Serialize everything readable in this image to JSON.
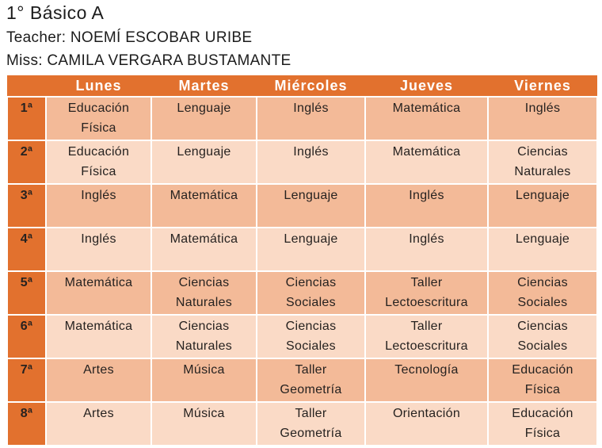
{
  "header": {
    "title": "1° Básico A",
    "teacher_line": "Teacher: NOEMÍ ESCOBAR URIBE",
    "miss_line": "Miss: CAMILA VERGARA BUSTAMANTE"
  },
  "colors": {
    "header_orange": "#E2712E",
    "row_light": "#FADAC6",
    "row_dark": "#F3BA98",
    "day_text": "#FFFFFF",
    "cell_text": "#262220"
  },
  "timetable": {
    "days": [
      "Lunes",
      "Martes",
      "Miércoles",
      "Jueves",
      "Viernes"
    ],
    "periods": [
      "1ª",
      "2ª",
      "3ª",
      "4ª",
      "5ª",
      "6ª",
      "7ª",
      "8ª"
    ],
    "rows": [
      [
        "Educación Física",
        "Lenguaje",
        "Inglés",
        "Matemática",
        "Inglés"
      ],
      [
        "Educación Física",
        "Lenguaje",
        "Inglés",
        "Matemática",
        "Ciencias Naturales"
      ],
      [
        "Inglés",
        "Matemática",
        "Lenguaje",
        "Inglés",
        "Lenguaje"
      ],
      [
        "Inglés",
        "Matemática",
        "Lenguaje",
        "Inglés",
        "Lenguaje"
      ],
      [
        "Matemática",
        "Ciencias Naturales",
        "Ciencias Sociales",
        "Taller Lectoescritura",
        "Ciencias Sociales"
      ],
      [
        "Matemática",
        "Ciencias Naturales",
        "Ciencias Sociales",
        "Taller Lectoescritura",
        "Ciencias Sociales"
      ],
      [
        "Artes",
        "Música",
        "Taller Geometría",
        "Tecnología",
        "Educación Física"
      ],
      [
        "Artes",
        "Música",
        "Taller Geometría",
        "Orientación",
        "Educación Física"
      ]
    ]
  }
}
